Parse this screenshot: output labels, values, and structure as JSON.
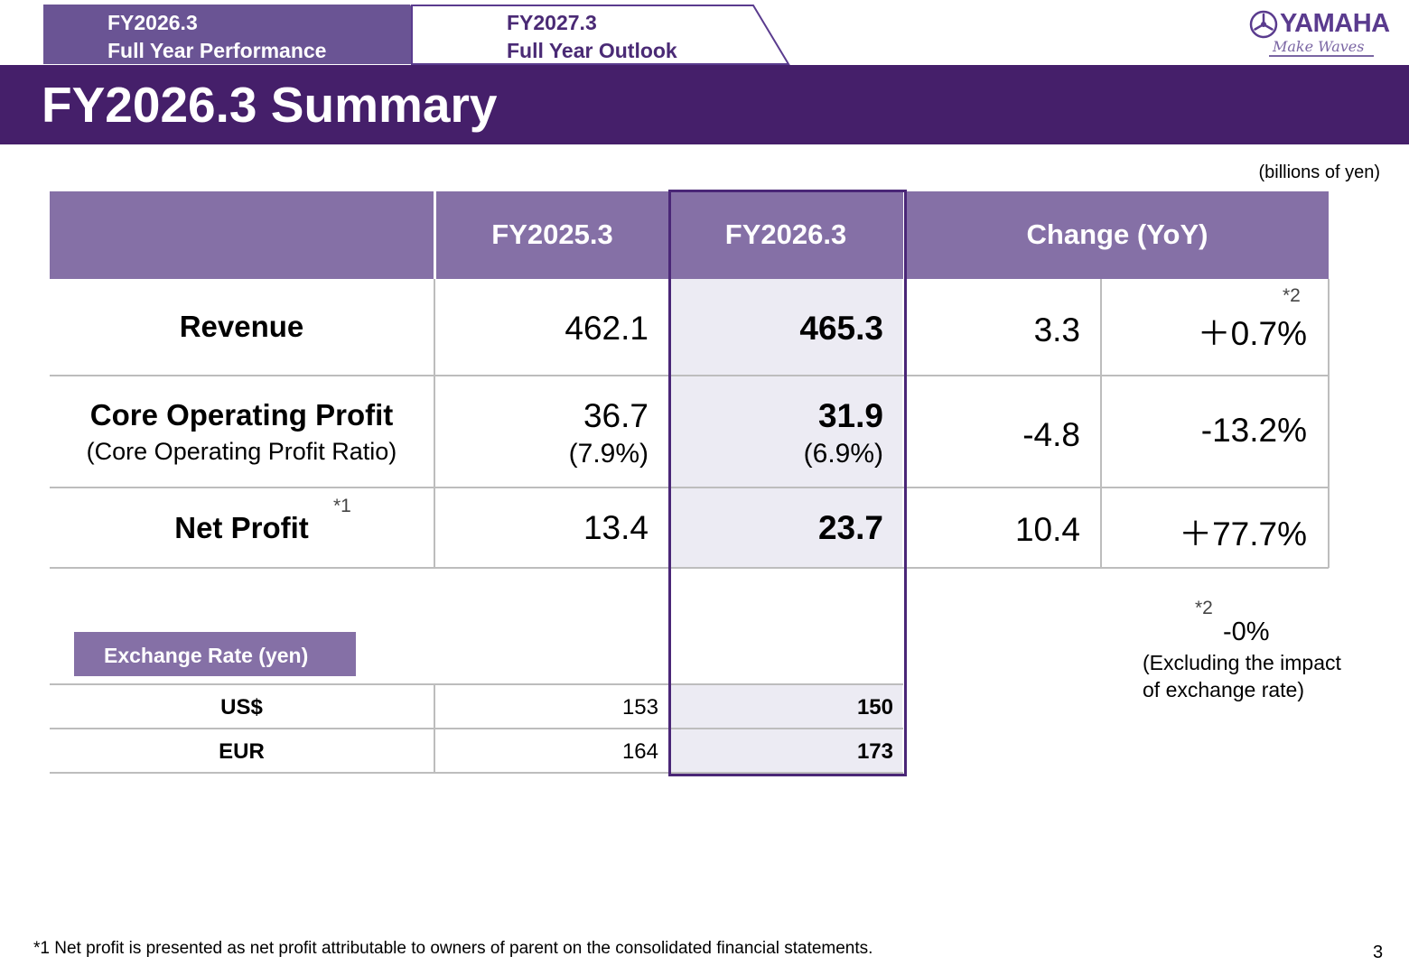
{
  "tabs": [
    {
      "line1": "FY2026.3",
      "line2": "Full Year Performance"
    },
    {
      "line1": "FY2027.3",
      "line2": "Full Year Outlook"
    }
  ],
  "logo": {
    "name": "YAMAHA",
    "tagline": "Make Waves"
  },
  "title": "FY2026.3 Summary",
  "unit_note": "(billions of yen)",
  "table": {
    "headers": [
      "FY2025.3",
      "FY2026.3",
      "Change (YoY)"
    ],
    "rows": [
      {
        "label": "Revenue",
        "prev": "462.1",
        "curr": "465.3",
        "change": "3.3",
        "pct": "＋0.7%",
        "pct_mark": "*2"
      },
      {
        "label": "Core Operating Profit",
        "sublabel": "(Core Operating Profit Ratio)",
        "prev": "36.7",
        "prev_sub": "(7.9%)",
        "curr": "31.9",
        "curr_sub": "(6.9%)",
        "change": "-4.8",
        "pct": "-13.2%"
      },
      {
        "label": "Net Profit",
        "label_mark": "*1",
        "prev": "13.4",
        "curr": "23.7",
        "change": "10.4",
        "pct": "＋77.7%"
      }
    ]
  },
  "exchange": {
    "title": "Exchange Rate (yen)",
    "rows": [
      {
        "label": "US$",
        "prev": "153",
        "curr": "150"
      },
      {
        "label": "EUR",
        "prev": "164",
        "curr": "173"
      }
    ]
  },
  "side_note": {
    "mark": "*2",
    "value": "-0%",
    "line1": "(Excluding the impact",
    "line2": "of exchange rate)"
  },
  "footnote": "*1  Net profit is presented as net profit attributable to owners of parent on the consolidated financial statements.",
  "page_number": "3",
  "colors": {
    "band": "#451f6a",
    "header": "#8570a6",
    "highlight": "#ecebf3",
    "frame": "#4a2677"
  }
}
